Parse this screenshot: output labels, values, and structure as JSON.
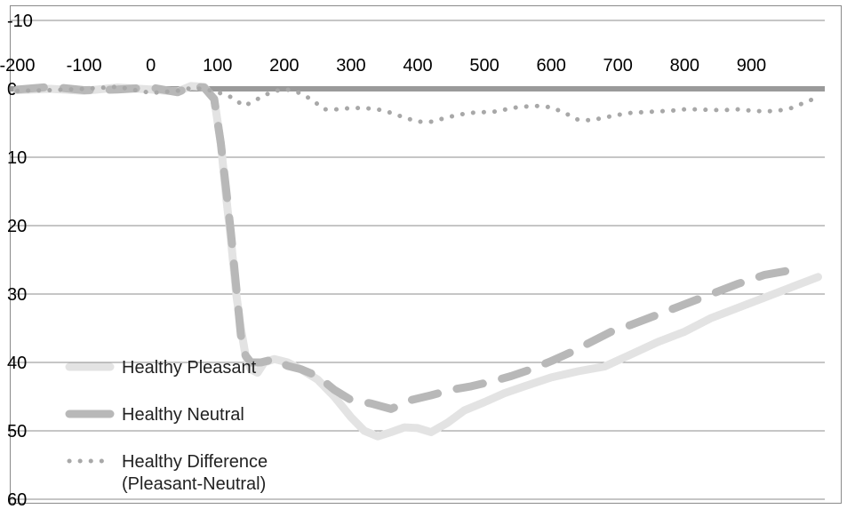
{
  "chart_data": {
    "type": "line",
    "title": "",
    "xlabel": "",
    "ylabel": "",
    "xlim": [
      -210,
      1010
    ],
    "ylim": [
      -10,
      60
    ],
    "y_inverted": true,
    "grid": true,
    "legend_position": "bottom-left",
    "x_ticks": [
      "-200",
      "-100",
      "0",
      "100",
      "200",
      "300",
      "400",
      "500",
      "600",
      "700",
      "800",
      "900"
    ],
    "y_ticks": [
      "-10",
      "0",
      "10",
      "20",
      "30",
      "40",
      "50",
      "60"
    ],
    "series": [
      {
        "name": "Healthy Pleasant",
        "style": "solid",
        "color": "#e3e3e3",
        "points": [
          [
            -200,
            0.2
          ],
          [
            -150,
            0.0
          ],
          [
            -100,
            0.3
          ],
          [
            -50,
            -0.2
          ],
          [
            0,
            0.1
          ],
          [
            40,
            0.4
          ],
          [
            60,
            -0.4
          ],
          [
            80,
            -0.3
          ],
          [
            95,
            1.5
          ],
          [
            105,
            8
          ],
          [
            112,
            15
          ],
          [
            120,
            22
          ],
          [
            128,
            30
          ],
          [
            135,
            35
          ],
          [
            142,
            39
          ],
          [
            150,
            41
          ],
          [
            160,
            41.5
          ],
          [
            170,
            40
          ],
          [
            185,
            39.5
          ],
          [
            205,
            40
          ],
          [
            225,
            41
          ],
          [
            250,
            42.5
          ],
          [
            275,
            45
          ],
          [
            300,
            48
          ],
          [
            320,
            50
          ],
          [
            340,
            50.8
          ],
          [
            360,
            50.2
          ],
          [
            380,
            49.5
          ],
          [
            400,
            49.6
          ],
          [
            420,
            50.2
          ],
          [
            445,
            48.8
          ],
          [
            470,
            47
          ],
          [
            500,
            45.8
          ],
          [
            530,
            44.5
          ],
          [
            560,
            43.5
          ],
          [
            600,
            42.2
          ],
          [
            640,
            41.3
          ],
          [
            680,
            40.6
          ],
          [
            720,
            38.8
          ],
          [
            760,
            37
          ],
          [
            800,
            35.5
          ],
          [
            840,
            33.5
          ],
          [
            880,
            32
          ],
          [
            920,
            30.5
          ],
          [
            960,
            29
          ],
          [
            1000,
            27.5
          ]
        ]
      },
      {
        "name": "Healthy Neutral",
        "style": "dashed",
        "color": "#b8b8b8",
        "points": [
          [
            -200,
            0.1
          ],
          [
            -150,
            -0.3
          ],
          [
            -100,
            0.2
          ],
          [
            -50,
            0.1
          ],
          [
            0,
            -0.2
          ],
          [
            40,
            0.5
          ],
          [
            60,
            -0.3
          ],
          [
            80,
            -0.2
          ],
          [
            95,
            1.5
          ],
          [
            105,
            8
          ],
          [
            112,
            14
          ],
          [
            120,
            21
          ],
          [
            128,
            29
          ],
          [
            135,
            36
          ],
          [
            142,
            39
          ],
          [
            150,
            40
          ],
          [
            165,
            40
          ],
          [
            185,
            39.5
          ],
          [
            205,
            40.5
          ],
          [
            225,
            41
          ],
          [
            250,
            42
          ],
          [
            275,
            44
          ],
          [
            300,
            45.5
          ],
          [
            330,
            46
          ],
          [
            360,
            46.8
          ],
          [
            390,
            45.5
          ],
          [
            420,
            44.8
          ],
          [
            450,
            44
          ],
          [
            480,
            43.5
          ],
          [
            510,
            42.8
          ],
          [
            540,
            42
          ],
          [
            570,
            41
          ],
          [
            600,
            39.8
          ],
          [
            630,
            38.5
          ],
          [
            660,
            37
          ],
          [
            690,
            35.5
          ],
          [
            720,
            34.5
          ],
          [
            760,
            33
          ],
          [
            800,
            31.5
          ],
          [
            840,
            30
          ],
          [
            880,
            28.5
          ],
          [
            920,
            27.2
          ],
          [
            960,
            26.5
          ]
        ]
      },
      {
        "name": "Healthy Difference\n(Pleasant-Neutral)",
        "style": "dotted",
        "color": "#a8a8a8",
        "points": [
          [
            -200,
            0.3
          ],
          [
            -150,
            0.2
          ],
          [
            -100,
            0.0
          ],
          [
            -50,
            -0.3
          ],
          [
            0,
            0.6
          ],
          [
            40,
            0.3
          ],
          [
            60,
            -0.1
          ],
          [
            80,
            0.0
          ],
          [
            100,
            0.5
          ],
          [
            120,
            1.2
          ],
          [
            140,
            2.5
          ],
          [
            160,
            1.5
          ],
          [
            180,
            0.5
          ],
          [
            200,
            0.0
          ],
          [
            220,
            0.5
          ],
          [
            240,
            1.5
          ],
          [
            260,
            3.0
          ],
          [
            280,
            3.0
          ],
          [
            300,
            2.8
          ],
          [
            320,
            2.8
          ],
          [
            340,
            3.0
          ],
          [
            360,
            3.5
          ],
          [
            380,
            4.2
          ],
          [
            400,
            4.8
          ],
          [
            420,
            4.8
          ],
          [
            440,
            4.3
          ],
          [
            460,
            3.8
          ],
          [
            480,
            3.5
          ],
          [
            500,
            3.4
          ],
          [
            520,
            3.3
          ],
          [
            540,
            2.8
          ],
          [
            560,
            2.6
          ],
          [
            580,
            2.5
          ],
          [
            600,
            2.7
          ],
          [
            620,
            3.5
          ],
          [
            640,
            4.5
          ],
          [
            660,
            4.6
          ],
          [
            680,
            4.2
          ],
          [
            700,
            3.8
          ],
          [
            720,
            3.5
          ],
          [
            740,
            3.4
          ],
          [
            760,
            3.3
          ],
          [
            780,
            3.2
          ],
          [
            800,
            3.0
          ],
          [
            820,
            3.0
          ],
          [
            840,
            3.1
          ],
          [
            860,
            3.1
          ],
          [
            880,
            3.0
          ],
          [
            900,
            3.2
          ],
          [
            920,
            3.3
          ],
          [
            940,
            3.2
          ],
          [
            960,
            2.8
          ],
          [
            980,
            2.0
          ],
          [
            1000,
            1.2
          ]
        ]
      }
    ]
  }
}
